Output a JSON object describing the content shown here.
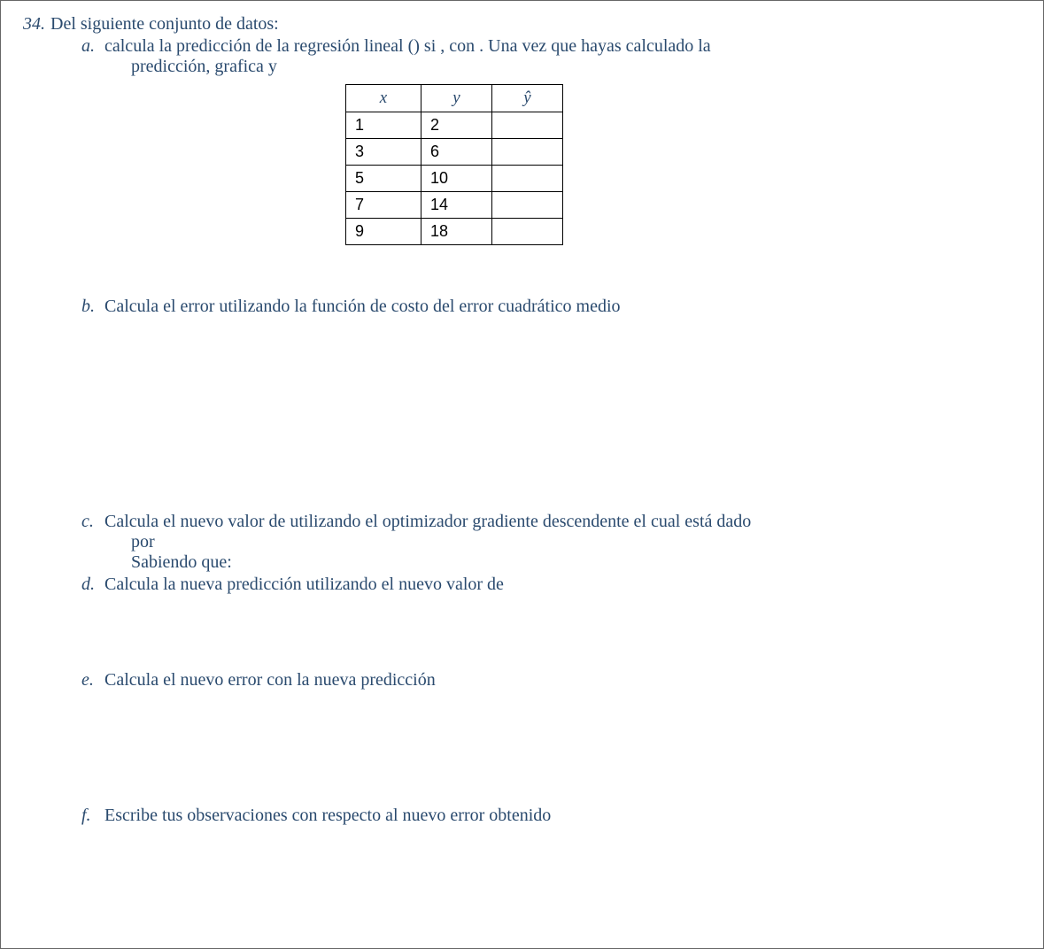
{
  "question": {
    "number": "34.",
    "intro": "Del siguiente conjunto de datos:"
  },
  "items": {
    "a": {
      "label": "a.",
      "line1": "calcula la predicción de la regresión lineal () si , con . Una vez que hayas calculado la",
      "line2": "predicción, grafica y"
    },
    "b": {
      "label": "b.",
      "text": "Calcula el error utilizando la función de costo del error cuadrático medio"
    },
    "c": {
      "label": "c.",
      "line1": "Calcula el nuevo valor de utilizando el optimizador gradiente descendente el cual está dado",
      "line2": "por",
      "line3": "Sabiendo que:"
    },
    "d": {
      "label": "d.",
      "text": "Calcula la nueva predicción utilizando el nuevo valor de"
    },
    "e": {
      "label": "e.",
      "text": "Calcula el nuevo error con la nueva predicción"
    },
    "f": {
      "label": "f.",
      "text": "Escribe tus observaciones con respecto al nuevo error obtenido"
    }
  },
  "table": {
    "headers": {
      "x": "x",
      "y": "y",
      "yhat": "ŷ"
    },
    "rows": [
      {
        "x": "1",
        "y": "2",
        "yhat": ""
      },
      {
        "x": "3",
        "y": "6",
        "yhat": ""
      },
      {
        "x": "5",
        "y": "10",
        "yhat": ""
      },
      {
        "x": "7",
        "y": "14",
        "yhat": ""
      },
      {
        "x": "9",
        "y": "18",
        "yhat": ""
      }
    ]
  }
}
